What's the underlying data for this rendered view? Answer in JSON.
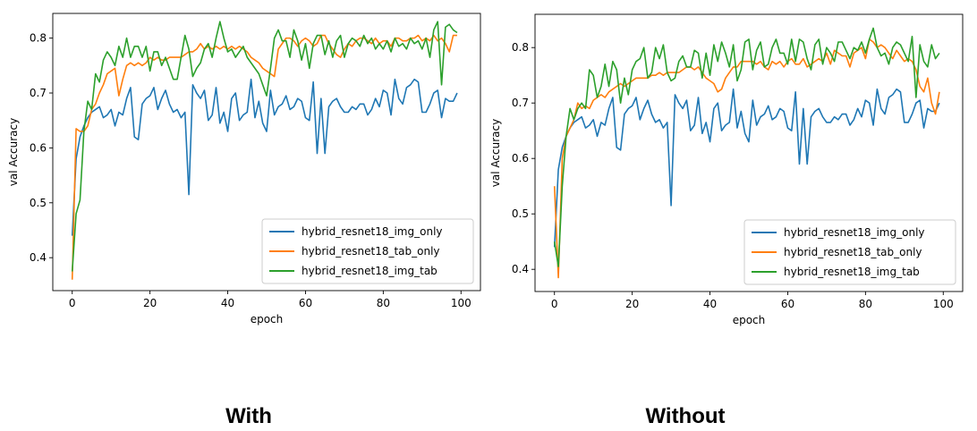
{
  "captions": {
    "left": "With",
    "right": "Without"
  },
  "chart_data": [
    {
      "type": "line",
      "title": "",
      "xlabel": "epoch",
      "ylabel": "val Accuracy",
      "xlim": [
        -5,
        105
      ],
      "ylim": [
        0.34,
        0.845
      ],
      "xticks": [
        0,
        20,
        40,
        60,
        80,
        100
      ],
      "yticks": [
        0.4,
        0.5,
        0.6,
        0.7,
        0.8
      ],
      "grid": false,
      "legend": "lower-right",
      "series": [
        {
          "name": "hybrid_resnet18_img_only",
          "color": "#1f77b4",
          "values": [
            0.44,
            0.58,
            0.62,
            0.64,
            0.655,
            0.665,
            0.67,
            0.675,
            0.655,
            0.66,
            0.67,
            0.64,
            0.665,
            0.66,
            0.69,
            0.71,
            0.62,
            0.615,
            0.68,
            0.69,
            0.695,
            0.71,
            0.67,
            0.69,
            0.705,
            0.68,
            0.665,
            0.67,
            0.655,
            0.665,
            0.515,
            0.715,
            0.7,
            0.69,
            0.705,
            0.65,
            0.66,
            0.71,
            0.645,
            0.665,
            0.63,
            0.69,
            0.7,
            0.65,
            0.66,
            0.665,
            0.725,
            0.655,
            0.685,
            0.645,
            0.63,
            0.705,
            0.66,
            0.675,
            0.68,
            0.695,
            0.67,
            0.675,
            0.69,
            0.685,
            0.655,
            0.65,
            0.72,
            0.59,
            0.69,
            0.59,
            0.675,
            0.685,
            0.69,
            0.675,
            0.665,
            0.665,
            0.675,
            0.67,
            0.68,
            0.68,
            0.66,
            0.67,
            0.69,
            0.675,
            0.705,
            0.7,
            0.66,
            0.725,
            0.69,
            0.68,
            0.71,
            0.715,
            0.725,
            0.72,
            0.665,
            0.665,
            0.68,
            0.7,
            0.705,
            0.655,
            0.69,
            0.685,
            0.685,
            0.7
          ]
        },
        {
          "name": "hybrid_resnet18_tab_only",
          "color": "#ff7f0e",
          "values": [
            0.36,
            0.635,
            0.63,
            0.63,
            0.64,
            0.67,
            0.68,
            0.7,
            0.715,
            0.735,
            0.74,
            0.745,
            0.695,
            0.725,
            0.75,
            0.755,
            0.75,
            0.755,
            0.75,
            0.755,
            0.765,
            0.76,
            0.765,
            0.76,
            0.76,
            0.765,
            0.765,
            0.765,
            0.765,
            0.77,
            0.775,
            0.775,
            0.78,
            0.79,
            0.78,
            0.785,
            0.78,
            0.785,
            0.78,
            0.785,
            0.78,
            0.785,
            0.78,
            0.785,
            0.78,
            0.775,
            0.765,
            0.76,
            0.755,
            0.745,
            0.74,
            0.735,
            0.73,
            0.78,
            0.79,
            0.8,
            0.8,
            0.795,
            0.785,
            0.795,
            0.8,
            0.795,
            0.785,
            0.79,
            0.805,
            0.805,
            0.79,
            0.78,
            0.77,
            0.765,
            0.78,
            0.79,
            0.785,
            0.795,
            0.8,
            0.8,
            0.795,
            0.79,
            0.8,
            0.79,
            0.795,
            0.795,
            0.785,
            0.8,
            0.8,
            0.795,
            0.795,
            0.8,
            0.8,
            0.805,
            0.795,
            0.8,
            0.795,
            0.805,
            0.795,
            0.8,
            0.79,
            0.775,
            0.805,
            0.805
          ]
        },
        {
          "name": "hybrid_resnet18_img_tab",
          "color": "#2ca02c",
          "values": [
            0.375,
            0.48,
            0.505,
            0.63,
            0.685,
            0.67,
            0.735,
            0.72,
            0.76,
            0.775,
            0.765,
            0.75,
            0.785,
            0.765,
            0.8,
            0.765,
            0.785,
            0.785,
            0.765,
            0.785,
            0.74,
            0.775,
            0.775,
            0.75,
            0.765,
            0.745,
            0.725,
            0.725,
            0.765,
            0.805,
            0.78,
            0.73,
            0.745,
            0.755,
            0.78,
            0.79,
            0.765,
            0.8,
            0.83,
            0.8,
            0.775,
            0.78,
            0.765,
            0.775,
            0.785,
            0.765,
            0.755,
            0.745,
            0.735,
            0.715,
            0.695,
            0.745,
            0.8,
            0.815,
            0.795,
            0.795,
            0.765,
            0.815,
            0.795,
            0.76,
            0.79,
            0.745,
            0.79,
            0.805,
            0.805,
            0.77,
            0.795,
            0.765,
            0.795,
            0.805,
            0.765,
            0.79,
            0.8,
            0.795,
            0.785,
            0.805,
            0.79,
            0.8,
            0.78,
            0.79,
            0.78,
            0.795,
            0.775,
            0.8,
            0.785,
            0.79,
            0.78,
            0.8,
            0.79,
            0.795,
            0.78,
            0.8,
            0.765,
            0.815,
            0.83,
            0.715,
            0.82,
            0.825,
            0.815,
            0.81
          ]
        }
      ]
    },
    {
      "type": "line",
      "title": "",
      "xlabel": "epoch",
      "ylabel": "val Accuracy",
      "xlim": [
        -5,
        105
      ],
      "ylim": [
        0.36,
        0.86
      ],
      "xticks": [
        0,
        20,
        40,
        60,
        80,
        100
      ],
      "yticks": [
        0.4,
        0.5,
        0.6,
        0.7,
        0.8
      ],
      "grid": false,
      "legend": "lower-right",
      "series": [
        {
          "name": "hybrid_resnet18_img_only",
          "color": "#1f77b4",
          "values": [
            0.44,
            0.58,
            0.62,
            0.64,
            0.655,
            0.665,
            0.67,
            0.675,
            0.655,
            0.66,
            0.67,
            0.64,
            0.665,
            0.66,
            0.69,
            0.71,
            0.62,
            0.615,
            0.68,
            0.69,
            0.695,
            0.71,
            0.67,
            0.69,
            0.705,
            0.68,
            0.665,
            0.67,
            0.655,
            0.665,
            0.515,
            0.715,
            0.7,
            0.69,
            0.705,
            0.65,
            0.66,
            0.71,
            0.645,
            0.665,
            0.63,
            0.69,
            0.7,
            0.65,
            0.66,
            0.665,
            0.725,
            0.655,
            0.685,
            0.645,
            0.63,
            0.705,
            0.66,
            0.675,
            0.68,
            0.695,
            0.67,
            0.675,
            0.69,
            0.685,
            0.655,
            0.65,
            0.72,
            0.59,
            0.69,
            0.59,
            0.675,
            0.685,
            0.69,
            0.675,
            0.665,
            0.665,
            0.675,
            0.67,
            0.68,
            0.68,
            0.66,
            0.67,
            0.69,
            0.675,
            0.705,
            0.7,
            0.66,
            0.725,
            0.69,
            0.68,
            0.71,
            0.715,
            0.725,
            0.72,
            0.665,
            0.665,
            0.68,
            0.7,
            0.705,
            0.655,
            0.69,
            0.685,
            0.685,
            0.7
          ]
        },
        {
          "name": "hybrid_resnet18_tab_only",
          "color": "#ff7f0e",
          "values": [
            0.55,
            0.385,
            0.6,
            0.64,
            0.655,
            0.67,
            0.7,
            0.69,
            0.695,
            0.69,
            0.705,
            0.71,
            0.715,
            0.71,
            0.72,
            0.725,
            0.73,
            0.735,
            0.73,
            0.735,
            0.74,
            0.745,
            0.745,
            0.745,
            0.745,
            0.75,
            0.75,
            0.755,
            0.75,
            0.755,
            0.755,
            0.755,
            0.755,
            0.76,
            0.765,
            0.765,
            0.76,
            0.765,
            0.755,
            0.745,
            0.74,
            0.735,
            0.72,
            0.725,
            0.745,
            0.755,
            0.765,
            0.765,
            0.775,
            0.775,
            0.775,
            0.775,
            0.77,
            0.775,
            0.765,
            0.76,
            0.775,
            0.77,
            0.775,
            0.765,
            0.775,
            0.78,
            0.77,
            0.77,
            0.78,
            0.765,
            0.77,
            0.775,
            0.78,
            0.775,
            0.79,
            0.77,
            0.795,
            0.79,
            0.785,
            0.785,
            0.765,
            0.79,
            0.795,
            0.8,
            0.78,
            0.815,
            0.81,
            0.8,
            0.805,
            0.8,
            0.79,
            0.78,
            0.795,
            0.785,
            0.775,
            0.78,
            0.775,
            0.76,
            0.73,
            0.72,
            0.745,
            0.7,
            0.68,
            0.72
          ]
        },
        {
          "name": "hybrid_resnet18_img_tab",
          "color": "#2ca02c",
          "values": [
            0.45,
            0.405,
            0.55,
            0.64,
            0.69,
            0.67,
            0.69,
            0.7,
            0.69,
            0.76,
            0.75,
            0.71,
            0.73,
            0.77,
            0.73,
            0.775,
            0.76,
            0.7,
            0.745,
            0.715,
            0.76,
            0.775,
            0.78,
            0.8,
            0.745,
            0.755,
            0.8,
            0.78,
            0.805,
            0.755,
            0.74,
            0.745,
            0.775,
            0.785,
            0.765,
            0.765,
            0.795,
            0.79,
            0.745,
            0.79,
            0.75,
            0.805,
            0.775,
            0.81,
            0.79,
            0.765,
            0.805,
            0.74,
            0.76,
            0.81,
            0.815,
            0.76,
            0.795,
            0.81,
            0.765,
            0.77,
            0.8,
            0.815,
            0.79,
            0.79,
            0.77,
            0.815,
            0.775,
            0.815,
            0.81,
            0.78,
            0.76,
            0.805,
            0.815,
            0.77,
            0.8,
            0.79,
            0.775,
            0.81,
            0.81,
            0.795,
            0.78,
            0.8,
            0.795,
            0.81,
            0.79,
            0.815,
            0.835,
            0.8,
            0.785,
            0.79,
            0.77,
            0.8,
            0.81,
            0.805,
            0.79,
            0.775,
            0.82,
            0.71,
            0.805,
            0.775,
            0.765,
            0.805,
            0.78,
            0.79
          ]
        }
      ]
    }
  ]
}
